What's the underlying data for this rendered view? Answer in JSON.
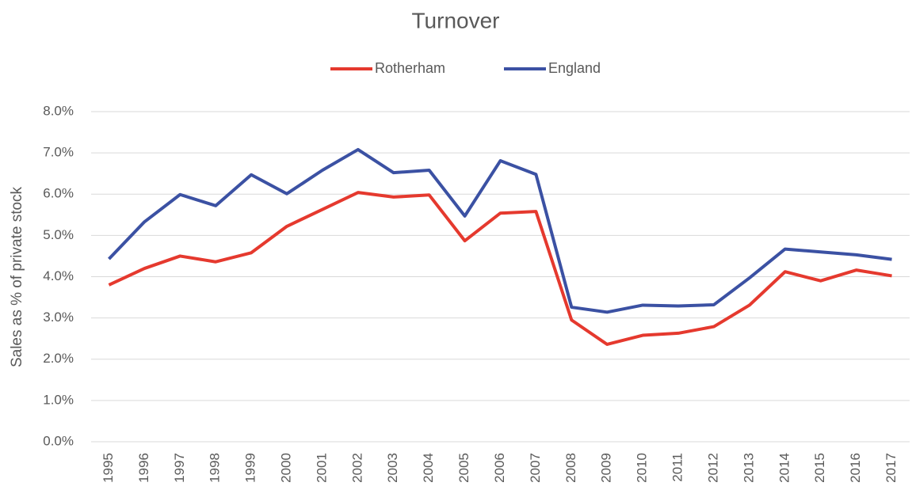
{
  "chart_data": {
    "type": "line",
    "title": "Turnover",
    "y_label": "Sales as % of private stock",
    "categories": [
      "1995",
      "1996",
      "1997",
      "1998",
      "1999",
      "2000",
      "2001",
      "2002",
      "2003",
      "2004",
      "2005",
      "2006",
      "2007",
      "2008",
      "2009",
      "2010",
      "2011",
      "2012",
      "2013",
      "2014",
      "2015",
      "2016",
      "2017"
    ],
    "series": [
      {
        "name": "Rotherham",
        "color": "#e5392e",
        "values": [
          3.8,
          4.2,
          4.5,
          4.36,
          4.58,
          5.22,
          5.63,
          6.04,
          5.93,
          5.98,
          4.87,
          5.54,
          5.58,
          2.95,
          2.36,
          2.58,
          2.63,
          2.79,
          3.31,
          4.12,
          3.9,
          4.16,
          4.02
        ]
      },
      {
        "name": "England",
        "color": "#3b51a3",
        "values": [
          4.43,
          5.33,
          5.99,
          5.72,
          6.47,
          6.01,
          6.58,
          7.08,
          6.52,
          6.58,
          5.47,
          6.81,
          6.48,
          3.26,
          3.14,
          3.31,
          3.29,
          3.32,
          3.97,
          4.67,
          4.6,
          4.53,
          4.42
        ]
      }
    ],
    "ylim": [
      0,
      8
    ],
    "yticks": [
      {
        "value": 0,
        "label": "0.0%"
      },
      {
        "value": 1,
        "label": "1.0%"
      },
      {
        "value": 2,
        "label": "2.0%"
      },
      {
        "value": 3,
        "label": "3.0%"
      },
      {
        "value": 4,
        "label": "4.0%"
      },
      {
        "value": 5,
        "label": "5.0%"
      },
      {
        "value": 6,
        "label": "6.0%"
      },
      {
        "value": 7,
        "label": "7.0%"
      },
      {
        "value": 8,
        "label": "8.0%"
      }
    ],
    "grid": true,
    "legend": "top"
  }
}
